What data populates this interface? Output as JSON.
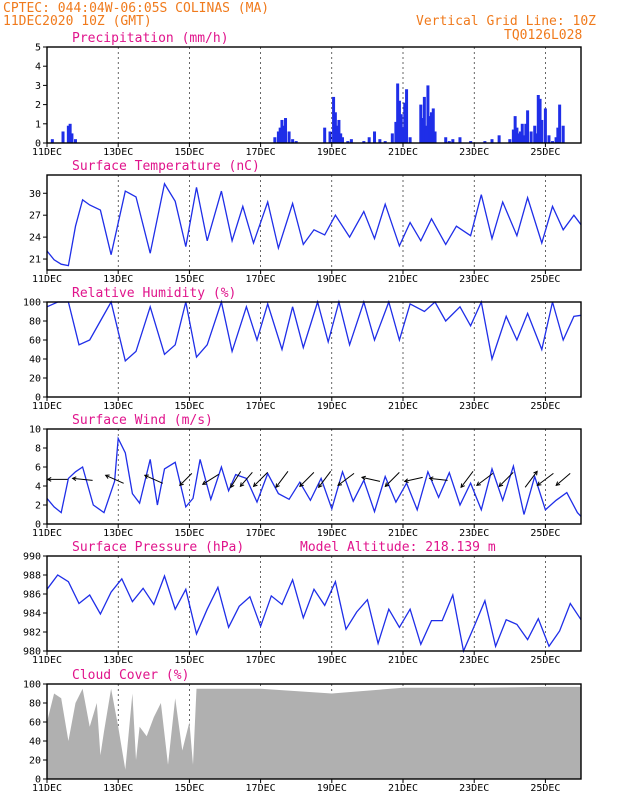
{
  "header": {
    "line1": "CPTEC:    044:04W-06:05S   COLINAS (MA)",
    "line2": "11DEC2020 10Z (GMT)",
    "grid_note": "Vertical Grid Line: 10Z",
    "code": "TQ0126L028"
  },
  "colors": {
    "header": "#f07a1c",
    "panel_title": "#e0148c",
    "series": "#1f2ee8",
    "cloud_fill": "#b0b0b0",
    "wind_arrow": "#000000"
  },
  "x_axis": {
    "labels": [
      "11DEC",
      "13DEC",
      "15DEC",
      "17DEC",
      "19DEC",
      "21DEC",
      "23DEC",
      "25DEC"
    ],
    "label_days": [
      0,
      2,
      4,
      6,
      8,
      10,
      12,
      14
    ],
    "day_range": [
      0,
      15
    ]
  },
  "chart_data": [
    {
      "id": "precip",
      "type": "bar",
      "title": "Precipitation (mm/h)",
      "ylim": [
        0,
        5
      ],
      "yticks": [
        0,
        1,
        2,
        3,
        4,
        5
      ],
      "x_days": [
        0.15,
        0.45,
        0.6,
        0.65,
        0.7,
        0.8,
        6.4,
        6.5,
        6.55,
        6.6,
        6.65,
        6.7,
        6.8,
        6.9,
        7.0,
        7.8,
        7.95,
        8.05,
        8.1,
        8.15,
        8.2,
        8.25,
        8.3,
        8.45,
        8.55,
        8.9,
        9.05,
        9.2,
        9.35,
        9.5,
        9.7,
        9.8,
        9.85,
        9.9,
        9.95,
        10.0,
        10.05,
        10.1,
        10.2,
        10.5,
        10.55,
        10.6,
        10.65,
        10.7,
        10.75,
        10.8,
        10.85,
        10.9,
        11.2,
        11.3,
        11.4,
        11.6,
        11.9,
        12.3,
        12.5,
        12.7,
        13.0,
        13.1,
        13.15,
        13.2,
        13.25,
        13.3,
        13.35,
        13.4,
        13.45,
        13.5,
        13.6,
        13.7,
        13.75,
        13.8,
        13.85,
        13.9,
        14.0,
        14.1,
        14.2,
        14.3,
        14.35,
        14.4,
        14.5
      ],
      "values": [
        0.2,
        0.6,
        0.9,
        1.0,
        0.5,
        0.2,
        0.3,
        0.6,
        0.8,
        1.2,
        0.9,
        1.3,
        0.6,
        0.2,
        0.1,
        0.8,
        0.6,
        2.4,
        1.6,
        0.9,
        1.2,
        0.5,
        0.3,
        0.1,
        0.2,
        0.1,
        0.3,
        0.6,
        0.2,
        0.1,
        0.5,
        1.1,
        3.1,
        2.2,
        1.5,
        0.8,
        2.1,
        2.8,
        0.3,
        2.0,
        1.3,
        2.4,
        0.9,
        3.0,
        1.4,
        1.6,
        1.8,
        0.6,
        0.3,
        0.1,
        0.2,
        0.3,
        0.1,
        0.1,
        0.2,
        0.4,
        0.2,
        0.7,
        1.4,
        0.8,
        0.5,
        0.6,
        1.0,
        0.4,
        1.0,
        1.7,
        0.6,
        0.9,
        0.5,
        2.5,
        2.3,
        1.2,
        1.8,
        0.4,
        0.1,
        0.3,
        0.8,
        2.0,
        0.9
      ]
    },
    {
      "id": "temp",
      "type": "line",
      "title": "Surface Temperature (nC)",
      "ylim": [
        19.5,
        32.5
      ],
      "yticks": [
        21,
        24,
        27,
        30
      ],
      "x_days": [
        0,
        0.2,
        0.4,
        0.6,
        0.8,
        1.0,
        1.2,
        1.5,
        1.8,
        2.2,
        2.5,
        2.9,
        3.3,
        3.6,
        3.9,
        4.2,
        4.5,
        4.9,
        5.2,
        5.5,
        5.8,
        6.2,
        6.5,
        6.9,
        7.2,
        7.5,
        7.8,
        8.1,
        8.5,
        8.9,
        9.2,
        9.5,
        9.9,
        10.2,
        10.5,
        10.8,
        11.2,
        11.5,
        11.9,
        12.2,
        12.5,
        12.8,
        13.2,
        13.5,
        13.9,
        14.2,
        14.5,
        14.8,
        15.0
      ],
      "values": [
        22.1,
        20.9,
        20.3,
        20.1,
        25.5,
        29.1,
        28.4,
        27.7,
        21.6,
        30.3,
        29.5,
        21.8,
        31.3,
        28.9,
        22.7,
        30.8,
        23.5,
        30.3,
        23.5,
        28.2,
        23.2,
        28.8,
        22.5,
        28.6,
        23.0,
        25.0,
        24.3,
        27.0,
        24.0,
        27.5,
        23.8,
        28.5,
        22.8,
        26.0,
        23.5,
        26.5,
        23.0,
        25.5,
        24.2,
        29.8,
        23.8,
        28.8,
        24.2,
        29.4,
        23.2,
        28.2,
        25.0,
        27.0,
        25.7
      ]
    },
    {
      "id": "rh",
      "type": "line",
      "title": "Relative Humidity (%)",
      "ylim": [
        0,
        100
      ],
      "yticks": [
        0,
        20,
        40,
        60,
        80,
        100
      ],
      "x_days": [
        0,
        0.3,
        0.6,
        0.9,
        1.2,
        1.5,
        1.8,
        2.2,
        2.5,
        2.9,
        3.3,
        3.6,
        3.9,
        4.2,
        4.5,
        4.9,
        5.2,
        5.6,
        5.9,
        6.2,
        6.6,
        6.9,
        7.2,
        7.6,
        7.9,
        8.2,
        8.5,
        8.9,
        9.2,
        9.6,
        9.9,
        10.2,
        10.6,
        10.9,
        11.2,
        11.6,
        11.9,
        12.2,
        12.5,
        12.9,
        13.2,
        13.5,
        13.9,
        14.2,
        14.5,
        14.8,
        15.0
      ],
      "values": [
        95,
        100,
        100,
        55,
        60,
        80,
        100,
        38,
        48,
        95,
        45,
        55,
        100,
        42,
        55,
        100,
        48,
        95,
        60,
        98,
        50,
        95,
        52,
        100,
        58,
        100,
        55,
        100,
        60,
        100,
        60,
        98,
        90,
        100,
        80,
        95,
        75,
        100,
        40,
        85,
        60,
        88,
        50,
        100,
        60,
        85,
        86
      ]
    },
    {
      "id": "wind",
      "type": "line",
      "title": "Surface Wind (m/s)",
      "ylim": [
        0,
        10
      ],
      "yticks": [
        0,
        2,
        4,
        6,
        8,
        10
      ],
      "x_days": [
        0,
        0.2,
        0.4,
        0.6,
        0.8,
        1.0,
        1.3,
        1.6,
        1.9,
        2.0,
        2.2,
        2.4,
        2.6,
        2.9,
        3.1,
        3.3,
        3.6,
        3.9,
        4.1,
        4.3,
        4.6,
        4.9,
        5.1,
        5.3,
        5.6,
        5.9,
        6.2,
        6.5,
        6.8,
        7.1,
        7.4,
        7.7,
        8.0,
        8.3,
        8.6,
        8.9,
        9.2,
        9.5,
        9.8,
        10.1,
        10.4,
        10.7,
        11.0,
        11.3,
        11.6,
        11.9,
        12.2,
        12.5,
        12.8,
        13.1,
        13.4,
        13.7,
        14.0,
        14.3,
        14.6,
        14.9,
        15.0
      ],
      "values": [
        2.7,
        1.8,
        1.2,
        4.8,
        5.5,
        6.0,
        2.0,
        1.2,
        4.5,
        9.0,
        7.5,
        3.2,
        2.2,
        6.8,
        2.0,
        5.8,
        6.5,
        1.8,
        2.7,
        6.8,
        2.6,
        6.0,
        3.5,
        5.2,
        4.8,
        2.3,
        5.3,
        3.2,
        2.6,
        4.4,
        2.5,
        4.8,
        1.6,
        5.5,
        2.4,
        4.6,
        1.3,
        5.0,
        2.3,
        4.3,
        1.5,
        5.5,
        2.8,
        5.4,
        2.0,
        4.3,
        1.5,
        5.8,
        2.5,
        6.1,
        1.0,
        5.0,
        1.5,
        2.5,
        3.3,
        1.2,
        0.8
      ],
      "arrows": [
        {
          "day": 0.3,
          "dx": -1,
          "dy": 0
        },
        {
          "day": 1.0,
          "dx": -1,
          "dy": -0.1
        },
        {
          "day": 1.9,
          "dx": -0.9,
          "dy": -0.4
        },
        {
          "day": 3.0,
          "dx": -0.9,
          "dy": -0.4
        },
        {
          "day": 3.9,
          "dx": -0.6,
          "dy": 0.6
        },
        {
          "day": 4.6,
          "dx": -0.8,
          "dy": 0.5
        },
        {
          "day": 5.3,
          "dx": -0.5,
          "dy": 0.8
        },
        {
          "day": 5.6,
          "dx": -0.6,
          "dy": 0.7
        },
        {
          "day": 6.0,
          "dx": -0.7,
          "dy": 0.7
        },
        {
          "day": 6.6,
          "dx": -0.6,
          "dy": 0.8
        },
        {
          "day": 7.3,
          "dx": -0.7,
          "dy": 0.7
        },
        {
          "day": 7.8,
          "dx": -0.6,
          "dy": 0.8
        },
        {
          "day": 8.4,
          "dx": -0.8,
          "dy": 0.6
        },
        {
          "day": 9.1,
          "dx": -0.9,
          "dy": -0.2
        },
        {
          "day": 9.7,
          "dx": -0.7,
          "dy": 0.7
        },
        {
          "day": 10.3,
          "dx": -0.9,
          "dy": 0.2
        },
        {
          "day": 11.0,
          "dx": -0.9,
          "dy": -0.1
        },
        {
          "day": 11.8,
          "dx": -0.6,
          "dy": 0.8
        },
        {
          "day": 12.3,
          "dx": -0.8,
          "dy": 0.6
        },
        {
          "day": 12.9,
          "dx": -0.7,
          "dy": 0.7
        },
        {
          "day": 13.6,
          "dx": 0.6,
          "dy": -0.8
        },
        {
          "day": 14.0,
          "dx": -0.8,
          "dy": 0.6
        },
        {
          "day": 14.5,
          "dx": -0.7,
          "dy": 0.6
        }
      ]
    },
    {
      "id": "pres",
      "type": "line",
      "title": "Surface Pressure (hPa)",
      "note": "Model Altitude: 218.139  m",
      "ylim": [
        980,
        990
      ],
      "yticks": [
        980,
        982,
        984,
        986,
        988,
        990
      ],
      "x_days": [
        0,
        0.3,
        0.6,
        0.9,
        1.2,
        1.5,
        1.8,
        2.1,
        2.4,
        2.7,
        3.0,
        3.3,
        3.6,
        3.9,
        4.2,
        4.5,
        4.8,
        5.1,
        5.4,
        5.7,
        6.0,
        6.3,
        6.6,
        6.9,
        7.2,
        7.5,
        7.8,
        8.1,
        8.4,
        8.7,
        9.0,
        9.3,
        9.6,
        9.9,
        10.2,
        10.5,
        10.8,
        11.1,
        11.4,
        11.7,
        12.0,
        12.3,
        12.6,
        12.9,
        13.2,
        13.5,
        13.8,
        14.1,
        14.4,
        14.7,
        15.0
      ],
      "values": [
        986.5,
        988.0,
        987.3,
        985.0,
        985.9,
        983.9,
        986.2,
        987.6,
        985.2,
        986.6,
        984.9,
        987.9,
        984.4,
        986.5,
        981.8,
        984.4,
        986.7,
        982.5,
        984.7,
        985.7,
        982.6,
        985.8,
        984.9,
        987.5,
        983.5,
        986.5,
        984.8,
        987.3,
        982.3,
        984.1,
        985.4,
        980.8,
        984.4,
        982.5,
        984.4,
        980.7,
        983.2,
        983.2,
        985.9,
        980.0,
        982.6,
        985.3,
        980.5,
        983.3,
        982.8,
        981.2,
        983.4,
        980.5,
        982.1,
        985.0,
        983.3
      ]
    },
    {
      "id": "cloud",
      "type": "area",
      "title": "Cloud Cover (%)",
      "ylim": [
        0,
        100
      ],
      "yticks": [
        0,
        20,
        40,
        60,
        80,
        100
      ],
      "x_days": [
        0,
        0.2,
        0.4,
        0.6,
        0.8,
        1.0,
        1.2,
        1.4,
        1.5,
        1.6,
        1.8,
        2.0,
        2.2,
        2.4,
        2.5,
        2.6,
        2.8,
        3.0,
        3.2,
        3.4,
        3.6,
        3.8,
        4.0,
        4.1,
        4.2,
        4.4,
        6.0,
        8.0,
        10.0,
        12.0,
        14.0,
        15.0
      ],
      "values": [
        60,
        90,
        85,
        40,
        80,
        95,
        55,
        80,
        25,
        50,
        95,
        55,
        10,
        90,
        20,
        55,
        45,
        65,
        80,
        15,
        85,
        30,
        60,
        15,
        95,
        95,
        95,
        90,
        96,
        96,
        97,
        97
      ]
    }
  ]
}
